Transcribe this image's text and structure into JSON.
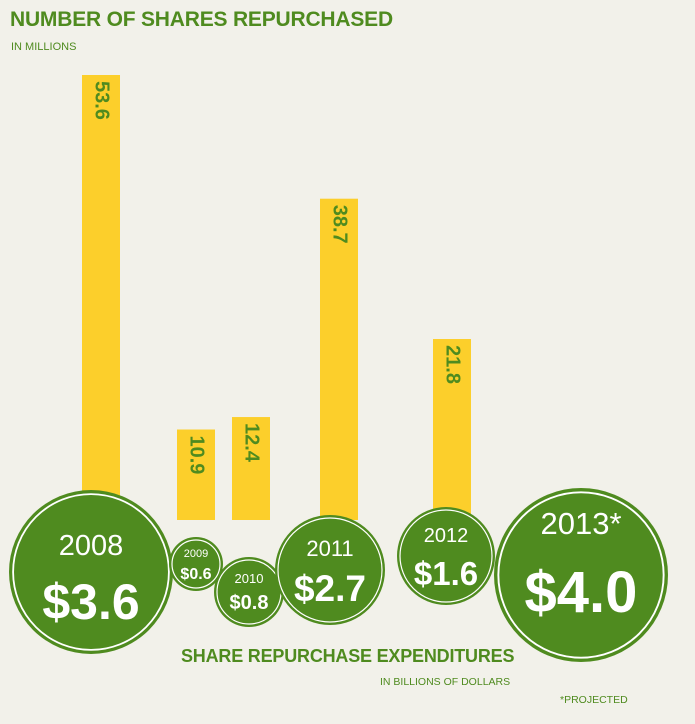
{
  "chart_data": {
    "type": "bar",
    "title": "NUMBER OF SHARES REPURCHASED",
    "subtitle": "IN MILLIONS",
    "categories": [
      "2008",
      "2009",
      "2010",
      "2011",
      "2012",
      "2013*"
    ],
    "series": [
      {
        "values": [
          53.6,
          10.9,
          12.4,
          38.7,
          21.8,
          null
        ],
        "labels": [
          "53.6",
          "10.9",
          "12.4",
          "38.7",
          "21.8",
          ""
        ]
      }
    ],
    "expenditures": {
      "title": "SHARE REPURCHASE EXPENDITURES",
      "subtitle": "IN BILLIONS OF DOLLARS",
      "values": [
        3.6,
        0.6,
        0.8,
        2.7,
        1.6,
        4.0
      ],
      "labels": [
        "$3.6",
        "$0.6",
        "$0.8",
        "$2.7",
        "$1.6",
        "$4.0"
      ]
    },
    "footnote": "*PROJECTED",
    "colors": {
      "bar": "#fccf2b",
      "bar_label": "#4f8b1f",
      "circle": "#4f8b1f",
      "circle_text": "#ffffff",
      "title": "#4f8b1f"
    }
  }
}
